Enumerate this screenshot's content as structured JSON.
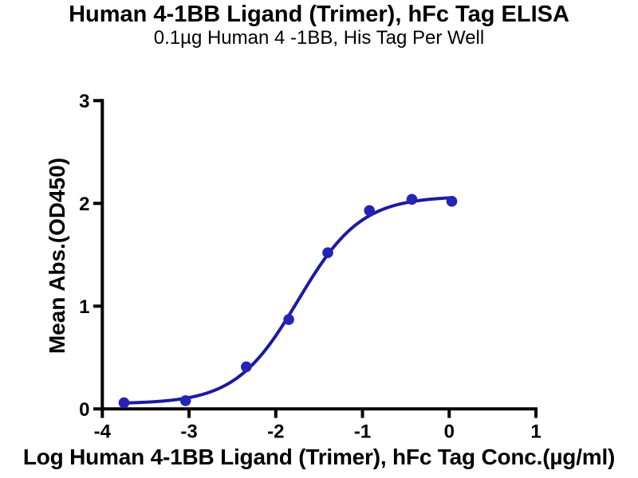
{
  "chart_data": {
    "type": "scatter",
    "title": "Human 4-1BB Ligand (Trimer), hFc Tag ELISA",
    "subtitle": "0.1µg Human 4 -1BB, His Tag Per Well",
    "xlabel": "Log Human 4-1BB Ligand (Trimer), hFc Tag Conc.(µg/ml)",
    "ylabel": "Mean Abs.(OD450)",
    "xlim": [
      -4,
      1
    ],
    "ylim": [
      0,
      3
    ],
    "x_ticks": [
      -4,
      -3,
      -2,
      -1,
      0,
      1
    ],
    "y_ticks": [
      0,
      1,
      2,
      3
    ],
    "grid": false,
    "legend": null,
    "axis_color": "#000000",
    "series": [
      {
        "marker_color": "#2424B8",
        "line_color": "#1A1AA2",
        "points": [
          {
            "x": -3.75,
            "y": 0.06
          },
          {
            "x": -3.04,
            "y": 0.08
          },
          {
            "x": -2.34,
            "y": 0.41
          },
          {
            "x": -1.85,
            "y": 0.87
          },
          {
            "x": -1.4,
            "y": 1.52
          },
          {
            "x": -0.92,
            "y": 1.93
          },
          {
            "x": -0.43,
            "y": 2.04
          },
          {
            "x": 0.03,
            "y": 2.02
          }
        ],
        "fit_curve": {
          "model": "4PL",
          "bottom": 0.05,
          "top": 2.07,
          "logEC50": -1.74,
          "hill": 1.2
        }
      }
    ]
  }
}
